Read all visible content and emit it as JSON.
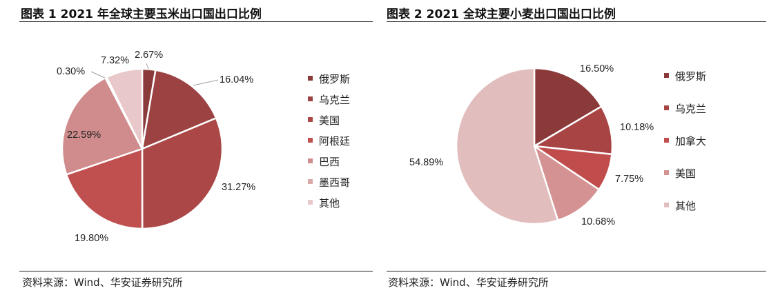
{
  "chart_data": [
    {
      "type": "pie",
      "title": "图表 1 2021 年全球主要玉米出口国出口比例",
      "source": "资料来源：Wind、华安证券研究所",
      "legend_position": "right",
      "slices": [
        {
          "name": "俄罗斯",
          "value": 2.67,
          "label": "2.67%",
          "color": "#8b3a3a"
        },
        {
          "name": "乌克兰",
          "value": 16.04,
          "label": "16.04%",
          "color": "#9c4242"
        },
        {
          "name": "美国",
          "value": 31.27,
          "label": "31.27%",
          "color": "#ac4747"
        },
        {
          "name": "阿根廷",
          "value": 19.8,
          "label": "19.80%",
          "color": "#c05050"
        },
        {
          "name": "巴西",
          "value": 22.59,
          "label": "22.59%",
          "color": "#d08c8c"
        },
        {
          "name": "墨西哥",
          "value": 0.3,
          "label": "0.30%",
          "color": "#dba8a8"
        },
        {
          "name": "其他",
          "value": 7.32,
          "label": "7.32%",
          "color": "#e8c8c8"
        }
      ]
    },
    {
      "type": "pie",
      "title": "图表 2 2021 全球主要小麦出口国出口比例",
      "source": "资料来源：Wind、华安证券研究所",
      "legend_position": "right",
      "slices": [
        {
          "name": "俄罗斯",
          "value": 16.5,
          "label": "16.50%",
          "color": "#8b3a3a"
        },
        {
          "name": "乌克兰",
          "value": 10.18,
          "label": "10.18%",
          "color": "#a84444"
        },
        {
          "name": "加拿大",
          "value": 7.75,
          "label": "7.75%",
          "color": "#c04c4c"
        },
        {
          "name": "美国",
          "value": 10.68,
          "label": "10.68%",
          "color": "#d49292"
        },
        {
          "name": "其他",
          "value": 54.89,
          "label": "54.89%",
          "color": "#e2bdbd"
        }
      ]
    }
  ]
}
